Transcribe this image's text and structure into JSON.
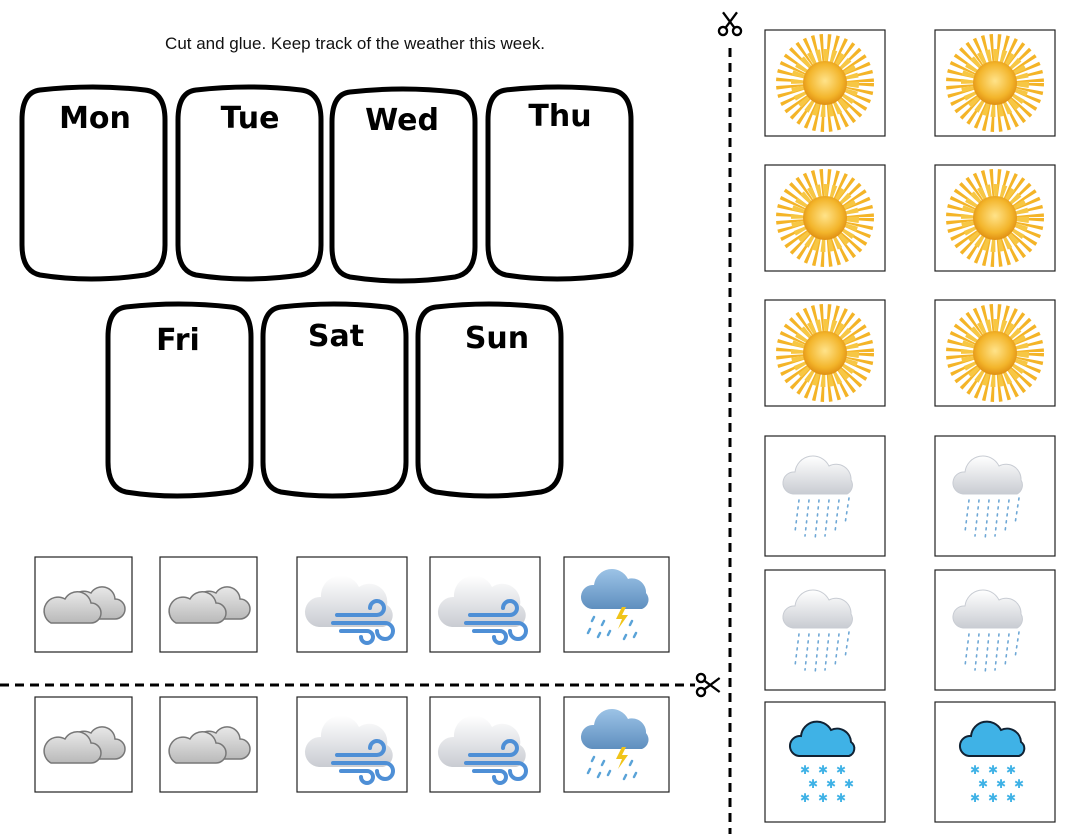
{
  "instructions": "Cut and glue. Keep track of the weather this week.",
  "days": [
    "Mon",
    "Tue",
    "Wed",
    "Thu",
    "Fri",
    "Sat",
    "Sun"
  ]
}
